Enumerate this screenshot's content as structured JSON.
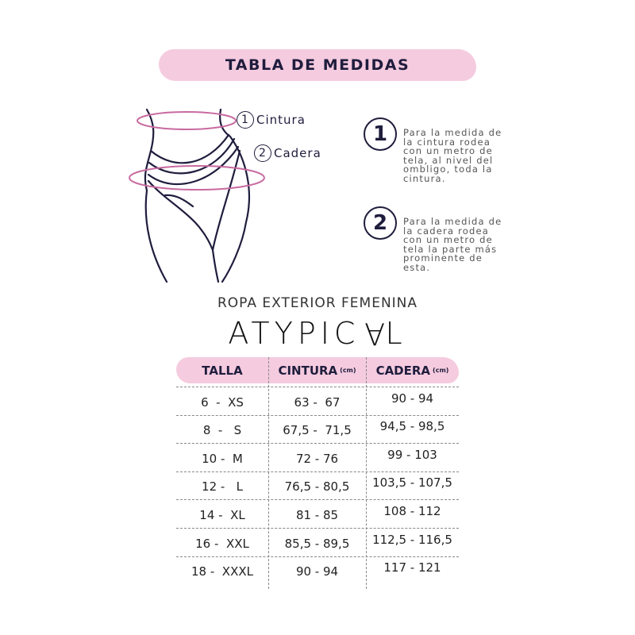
{
  "title": "TABLA DE MEDIDAS",
  "figure": {
    "labels": [
      {
        "num": "1",
        "text": "Cintura"
      },
      {
        "num": "2",
        "text": "Cadera"
      }
    ],
    "accent_color": "#c86aa0"
  },
  "instructions": [
    {
      "num": "1",
      "text": "Para la medida de la cintura rodea con un metro de tela, al nivel del ombligo, toda la cintura."
    },
    {
      "num": "2",
      "text": "Para la medida de la cadera rodea con un metro de tela la parte más prominente de esta."
    }
  ],
  "subtitle": "ROPA EXTERIOR FEMENINA",
  "brand": {
    "pre": "ATYPIC",
    "inverted": "A",
    "post": "L"
  },
  "table": {
    "headers": [
      {
        "label": "TALLA",
        "unit": ""
      },
      {
        "label": "CINTURA",
        "unit": "(cm)"
      },
      {
        "label": "CADERA",
        "unit": "(cm)"
      }
    ],
    "rows": [
      [
        "6  -  XS",
        "63 -  67",
        "90 - 94"
      ],
      [
        "8  -   S",
        "67,5 -  71,5",
        "94,5 - 98,5"
      ],
      [
        "10 -  M",
        "72 - 76",
        "99 - 103"
      ],
      [
        "12 -   L",
        "76,5 - 80,5",
        "103,5 - 107,5"
      ],
      [
        "14 -  XL",
        "81 - 85",
        "108 - 112"
      ],
      [
        "16 -  XXL",
        "85,5 - 89,5",
        "112,5 - 116,5"
      ],
      [
        "18 -  XXXL",
        "90 - 94",
        "117 - 121"
      ]
    ]
  },
  "colors": {
    "pink": "#f5cbdf",
    "navy": "#1f1d3d"
  }
}
